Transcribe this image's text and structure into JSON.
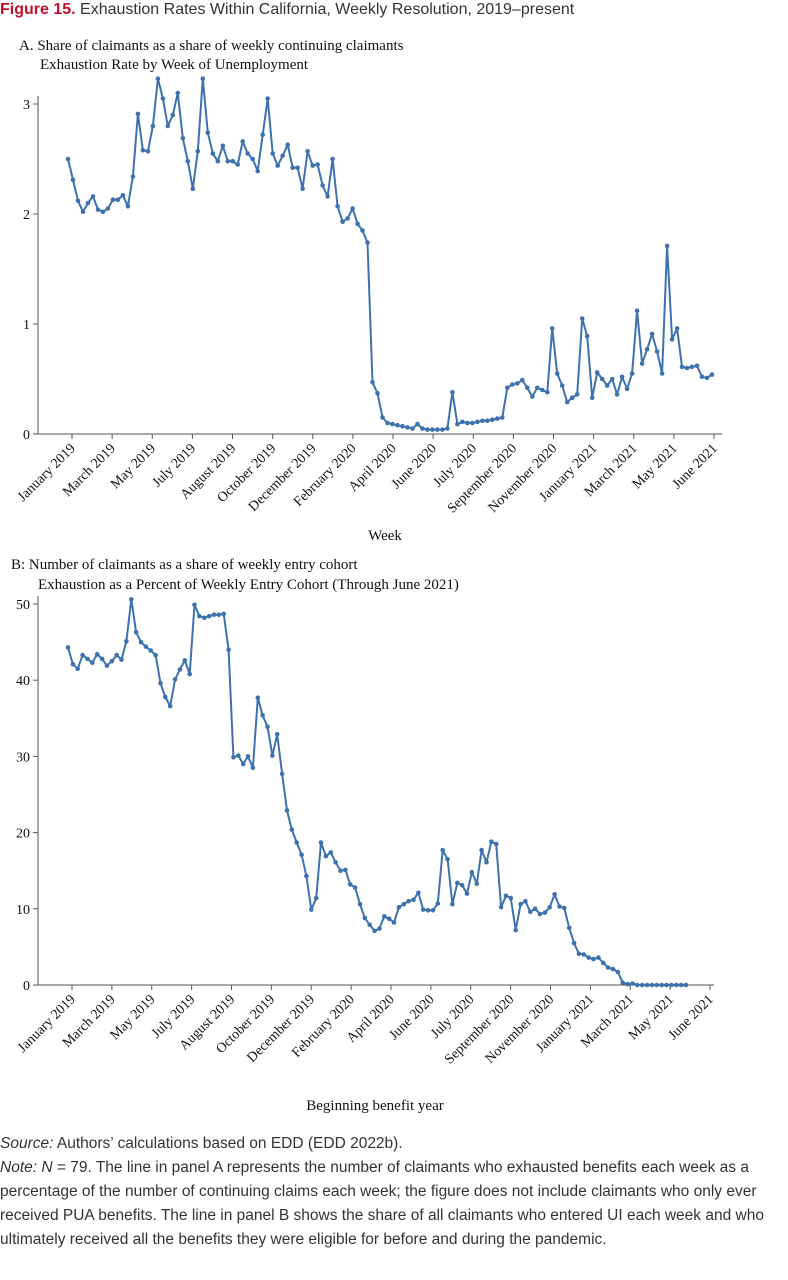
{
  "figure": {
    "label": "Figure 15.",
    "title": "Exhaustion Rates Within California, Weekly Resolution, 2019–present"
  },
  "panelA": {
    "heading": "A. Share of claimants as a share of weekly continuing claimants",
    "subheading": "Exhaustion Rate by Week of Unemployment"
  },
  "panelB": {
    "heading": "B: Number of claimants as a share of weekly entry cohort",
    "subheading": "Exhaustion as a Percent of Weekly Entry Cohort (Through June 2021)"
  },
  "footer": {
    "source_label": "Source:",
    "source_text": "Authors’ calculations based on EDD (EDD 2022b).",
    "note_label": "Note:",
    "note_n": "N",
    "note_text": "= 79. The line in panel A represents the number of claimants who exhausted benefits each week as a percentage of the number of continuing claims each week; the figure does not include claimants who only ever received PUA benefits. The line in panel B shows the share of all claimants who entered UI each week and who ultimately received all the benefits they were eligible for before and during the pandemic."
  },
  "colors": {
    "line": "#3d72ae",
    "accent": "#c0102a"
  },
  "chart_data": [
    {
      "type": "line",
      "title": "Exhaustion Rate by Week of Unemployment",
      "xlabel": "Week",
      "ylabel": "",
      "ylim": [
        0,
        3.0
      ],
      "yticks": [
        0,
        1,
        2,
        3
      ],
      "tick_labels": [
        "January 2019",
        "March 2019",
        "May 2019",
        "July 2019",
        "August 2019",
        "October 2019",
        "December 2019",
        "February 2020",
        "April 2020",
        "June 2020",
        "July 2020",
        "September 2020",
        "November 2020",
        "January 2021",
        "March 2021",
        "May 2021",
        "June 2021"
      ],
      "grid": false,
      "values": [
        2.5,
        2.31,
        2.12,
        2.02,
        2.1,
        2.16,
        2.04,
        2.02,
        2.05,
        2.13,
        2.13,
        2.17,
        2.07,
        2.34,
        2.91,
        2.58,
        2.57,
        2.8,
        3.23,
        3.05,
        2.8,
        2.9,
        3.1,
        2.69,
        2.48,
        2.23,
        2.57,
        3.23,
        2.74,
        2.55,
        2.48,
        2.62,
        2.48,
        2.48,
        2.45,
        2.66,
        2.55,
        2.5,
        2.39,
        2.72,
        3.05,
        2.55,
        2.44,
        2.53,
        2.63,
        2.42,
        2.42,
        2.23,
        2.57,
        2.44,
        2.45,
        2.26,
        2.16,
        2.5,
        2.07,
        1.93,
        1.96,
        2.05,
        1.91,
        1.85,
        1.74,
        0.47,
        0.37,
        0.15,
        0.1,
        0.09,
        0.08,
        0.07,
        0.06,
        0.05,
        0.09,
        0.05,
        0.04,
        0.04,
        0.04,
        0.04,
        0.05,
        0.38,
        0.09,
        0.11,
        0.1,
        0.1,
        0.11,
        0.12,
        0.12,
        0.13,
        0.14,
        0.15,
        0.42,
        0.45,
        0.46,
        0.49,
        0.42,
        0.34,
        0.42,
        0.4,
        0.38,
        0.96,
        0.55,
        0.44,
        0.29,
        0.33,
        0.36,
        1.05,
        0.89,
        0.33,
        0.56,
        0.5,
        0.44,
        0.5,
        0.36,
        0.52,
        0.41,
        0.55,
        1.12,
        0.64,
        0.77,
        0.91,
        0.75,
        0.55,
        1.71,
        0.86,
        0.96,
        0.61,
        0.6,
        0.61,
        0.62,
        0.52,
        0.51,
        0.54
      ]
    },
    {
      "type": "line",
      "title": "Exhaustion as a Percent of Weekly Entry Cohort (Through June 2021)",
      "xlabel": "Beginning benefit year",
      "ylabel": "",
      "ylim": [
        0,
        50
      ],
      "yticks": [
        0,
        10,
        20,
        30,
        40,
        50
      ],
      "tick_labels": [
        "January 2019",
        "March 2019",
        "May 2019",
        "July 2019",
        "August 2019",
        "October 2019",
        "December 2019",
        "February 2020",
        "April 2020",
        "June 2020",
        "July 2020",
        "September 2020",
        "November 2020",
        "January 2021",
        "March 2021",
        "May 2021",
        "June 2021"
      ],
      "grid": false,
      "values": [
        44.3,
        42.1,
        41.5,
        43.3,
        42.8,
        42.3,
        43.4,
        42.8,
        41.9,
        42.5,
        43.3,
        42.7,
        45.1,
        50.6,
        46.3,
        45.0,
        44.4,
        43.9,
        43.3,
        39.6,
        37.8,
        36.6,
        40.1,
        41.4,
        42.6,
        40.8,
        49.9,
        48.4,
        48.2,
        48.4,
        48.6,
        48.6,
        48.7,
        44.0,
        29.9,
        30.1,
        29.0,
        30.0,
        28.5,
        37.7,
        35.4,
        33.9,
        30.1,
        32.9,
        27.7,
        22.9,
        20.4,
        18.7,
        17.1,
        14.3,
        9.9,
        11.4,
        18.7,
        16.9,
        17.4,
        16.1,
        15.0,
        15.1,
        13.2,
        12.8,
        10.6,
        8.8,
        7.9,
        7.1,
        7.4,
        9.0,
        8.7,
        8.2,
        10.2,
        10.6,
        11.0,
        11.2,
        12.1,
        9.9,
        9.8,
        9.8,
        10.7,
        17.7,
        16.5,
        10.6,
        13.4,
        13.1,
        12.0,
        14.8,
        13.3,
        17.7,
        16.1,
        18.8,
        18.5,
        10.2,
        11.7,
        11.4,
        7.2,
        10.6,
        11.0,
        9.6,
        10.0,
        9.3,
        9.5,
        10.2,
        11.9,
        10.3,
        10.1,
        7.5,
        5.5,
        4.1,
        4.0,
        3.6,
        3.4,
        3.6,
        2.9,
        2.3,
        2.1,
        1.7,
        0.3,
        0.1,
        0.2,
        0.0,
        0.0,
        0.0,
        0.0,
        0.0,
        0.0,
        0.0,
        0.0,
        0.0,
        0.0,
        0.0
      ]
    }
  ]
}
